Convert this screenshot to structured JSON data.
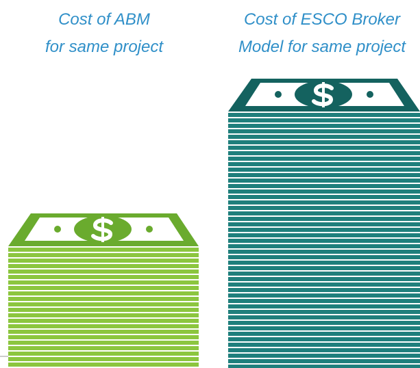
{
  "labels": [
    {
      "lines": [
        "Cost of ABM",
        "for same project"
      ]
    },
    {
      "lines": [
        "Cost of ESCO Broker",
        "Model for same project"
      ]
    }
  ]
}
